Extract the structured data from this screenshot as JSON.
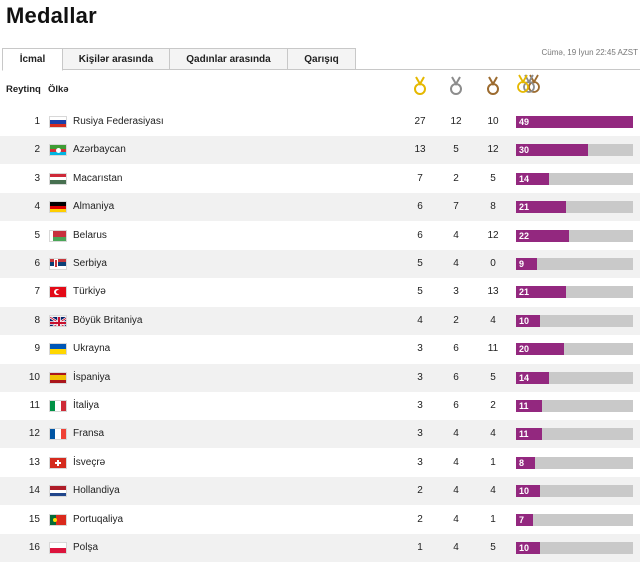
{
  "page": {
    "title": "Medallar"
  },
  "tabs": [
    {
      "label": "İcmal",
      "active": true
    },
    {
      "label": "Kişilər arasında",
      "active": false
    },
    {
      "label": "Qadınlar arasında",
      "active": false
    },
    {
      "label": "Qarışıq",
      "active": false
    }
  ],
  "timestamp": "Cümə, 19 İyun 22:45 AZST",
  "columns": {
    "rank": "Reytinq",
    "country": "Ölkə"
  },
  "icons": {
    "gold": "gold-medal-icon",
    "silver": "silver-medal-icon",
    "bronze": "bronze-medal-icon",
    "total": "total-medals-icon"
  },
  "colors": {
    "bar_fill": "#93287f",
    "bar_track": "#c9c9c9",
    "gold": "#e5b800",
    "silver": "#8c8c8c",
    "bronze": "#9c6b2f"
  },
  "bar_max": 49,
  "rows": [
    {
      "rank": "1",
      "country": "Rusiya Federasiyası",
      "flag": "flag-russia",
      "gold": "27",
      "silver": "12",
      "bronze": "10",
      "total": "49"
    },
    {
      "rank": "2",
      "country": "Azərbaycan",
      "flag": "flag-azerbaijan",
      "gold": "13",
      "silver": "5",
      "bronze": "12",
      "total": "30"
    },
    {
      "rank": "3",
      "country": "Macarıstan",
      "flag": "flag-hungary",
      "gold": "7",
      "silver": "2",
      "bronze": "5",
      "total": "14"
    },
    {
      "rank": "4",
      "country": "Almaniya",
      "flag": "flag-germany",
      "gold": "6",
      "silver": "7",
      "bronze": "8",
      "total": "21"
    },
    {
      "rank": "5",
      "country": "Belarus",
      "flag": "flag-belarus",
      "gold": "6",
      "silver": "4",
      "bronze": "12",
      "total": "22"
    },
    {
      "rank": "6",
      "country": "Serbiya",
      "flag": "flag-serbia",
      "gold": "5",
      "silver": "4",
      "bronze": "0",
      "total": "9"
    },
    {
      "rank": "7",
      "country": "Türkiyə",
      "flag": "flag-turkey",
      "gold": "5",
      "silver": "3",
      "bronze": "13",
      "total": "21"
    },
    {
      "rank": "8",
      "country": "Böyük Britaniya",
      "flag": "flag-uk",
      "gold": "4",
      "silver": "2",
      "bronze": "4",
      "total": "10"
    },
    {
      "rank": "9",
      "country": "Ukrayna",
      "flag": "flag-ukraine",
      "gold": "3",
      "silver": "6",
      "bronze": "11",
      "total": "20"
    },
    {
      "rank": "10",
      "country": "İspaniya",
      "flag": "flag-spain",
      "gold": "3",
      "silver": "6",
      "bronze": "5",
      "total": "14"
    },
    {
      "rank": "11",
      "country": "İtaliya",
      "flag": "flag-italy",
      "gold": "3",
      "silver": "6",
      "bronze": "2",
      "total": "11"
    },
    {
      "rank": "12",
      "country": "Fransa",
      "flag": "flag-france",
      "gold": "3",
      "silver": "4",
      "bronze": "4",
      "total": "11"
    },
    {
      "rank": "13",
      "country": "İsveçrə",
      "flag": "flag-switzerland",
      "gold": "3",
      "silver": "4",
      "bronze": "1",
      "total": "8"
    },
    {
      "rank": "14",
      "country": "Hollandiya",
      "flag": "flag-netherlands",
      "gold": "2",
      "silver": "4",
      "bronze": "4",
      "total": "10"
    },
    {
      "rank": "15",
      "country": "Portuqaliya",
      "flag": "flag-portugal",
      "gold": "2",
      "silver": "4",
      "bronze": "1",
      "total": "7"
    },
    {
      "rank": "16",
      "country": "Polşa",
      "flag": "flag-poland",
      "gold": "1",
      "silver": "4",
      "bronze": "5",
      "total": "10"
    }
  ]
}
